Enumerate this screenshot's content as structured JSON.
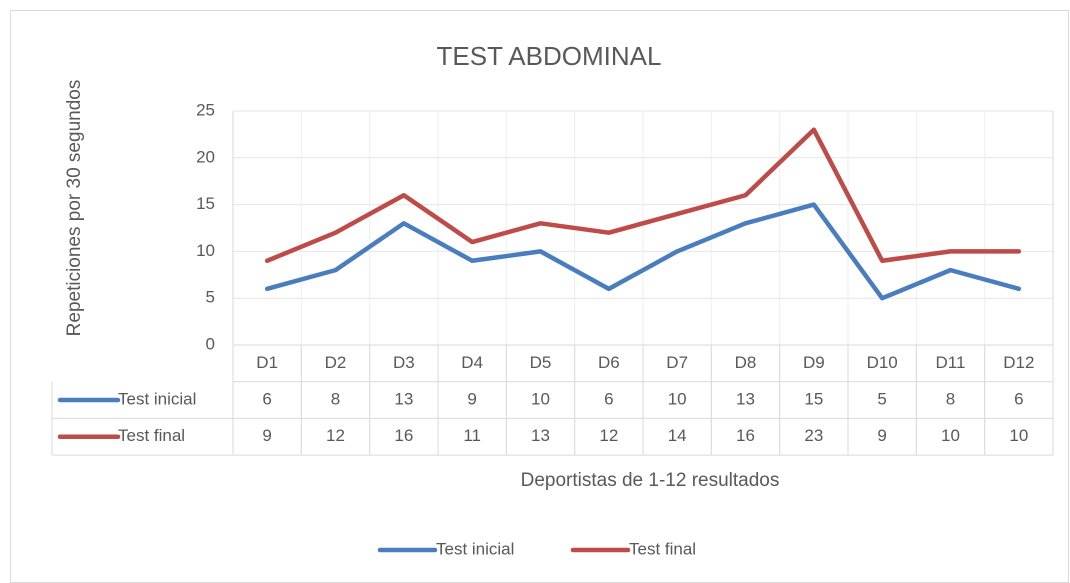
{
  "chart_data": {
    "type": "line",
    "title": "TEST ABDOMINAL",
    "x_label": "Deportistas de 1-12 resultados",
    "y_label": "Repeticiones por 30 segundos",
    "categories": [
      "D1",
      "D2",
      "D3",
      "D4",
      "D5",
      "D6",
      "D7",
      "D8",
      "D9",
      "D10",
      "D11",
      "D12"
    ],
    "series": [
      {
        "name": "Test inicial",
        "color": "#4a7dbd",
        "values": [
          6,
          8,
          13,
          9,
          10,
          6,
          10,
          13,
          15,
          5,
          8,
          6
        ]
      },
      {
        "name": "Test final",
        "color": "#be4b48",
        "values": [
          9,
          12,
          16,
          11,
          13,
          12,
          14,
          16,
          23,
          9,
          10,
          10
        ]
      }
    ],
    "ylim": [
      0,
      25
    ],
    "yticks": [
      0,
      5,
      10,
      15,
      20,
      25
    ],
    "grid": true,
    "data_table": true,
    "legend": "bottom"
  }
}
